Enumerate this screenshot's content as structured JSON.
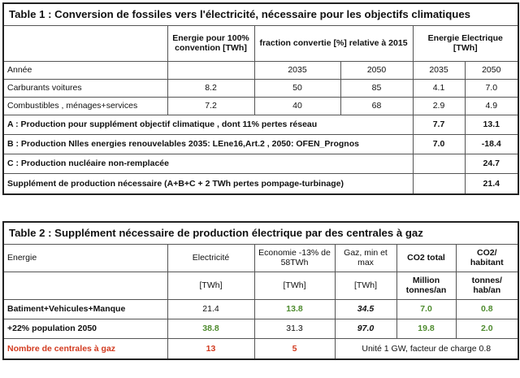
{
  "colors": {
    "green": "#4e8b2e",
    "red": "#d23a1f",
    "border": "#555555"
  },
  "table1": {
    "title": "Table 1 : Conversion de fossiles vers l'électricité, nécessaire pour les objectifs climatiques",
    "h_energie": "Energie pour 100% convention [TWh]",
    "h_fraction": "fraction convertie [%] relative à 2015",
    "h_elec": "Energie Electrique [TWh]",
    "annee": "Année",
    "y2035": "2035",
    "y2050": "2050",
    "rows": [
      {
        "label": "Carburants voitures",
        "energie": "8.2",
        "f2035": "50",
        "f2050": "85",
        "e2035": "4.1",
        "e2050": "7.0"
      },
      {
        "label": "Combustibles , ménages+services",
        "energie": "7.2",
        "f2035": "40",
        "f2050": "68",
        "e2035": "2.9",
        "e2050": "4.9"
      }
    ],
    "A": {
      "label": "A : Production pour supplément objectif climatique , dont 11% pertes réseau",
      "v2035": "7.7",
      "v2050": "13.1"
    },
    "B": {
      "label": "B : Production Nlles energies renouvelables 2035: LEne16,Art.2 , 2050: OFEN_Prognos",
      "v2035": "7.0",
      "v2050": "-18.4"
    },
    "C": {
      "label": "C : Production nucléaire non-remplacée",
      "v2035": "",
      "v2050": "24.7"
    },
    "S": {
      "label": "Supplément de production nécessaire (A+B+C + 2 TWh pertes pompage-turbinage)",
      "v2035": "",
      "v2050": "21.4"
    }
  },
  "table2": {
    "title": "Table 2 :  Supplément nécessaire de production électrique par des centrales à gaz",
    "h_energie": "Energie",
    "h_elec": "Electricité",
    "h_eco": "Economie -13% de 58TWh",
    "h_gaz": "Gaz, min et max",
    "h_co2": "CO2 total",
    "h_co2hab": "CO2/ habitant",
    "u_elec": "[TWh]",
    "u_eco": "[TWh]",
    "u_gaz": "[TWh]",
    "u_co2": "Million tonnes/an",
    "u_co2hab": "tonnes/ hab/an",
    "rows": [
      {
        "label": "Batiment+Vehicules+Manque",
        "elec": "21.4",
        "eco": "13.8",
        "gaz": "34.5",
        "co2": "7.0",
        "co2hab": "0.8"
      },
      {
        "label": "+22% population 2050",
        "elec": "38.8",
        "eco": "31.3",
        "gaz": "97.0",
        "co2": "19.8",
        "co2hab": "2.0"
      }
    ],
    "last": {
      "label": "Nombre de centrales à gaz",
      "elec": "13",
      "eco": "5",
      "note": "Unité 1 GW, facteur de charge 0.8"
    }
  }
}
